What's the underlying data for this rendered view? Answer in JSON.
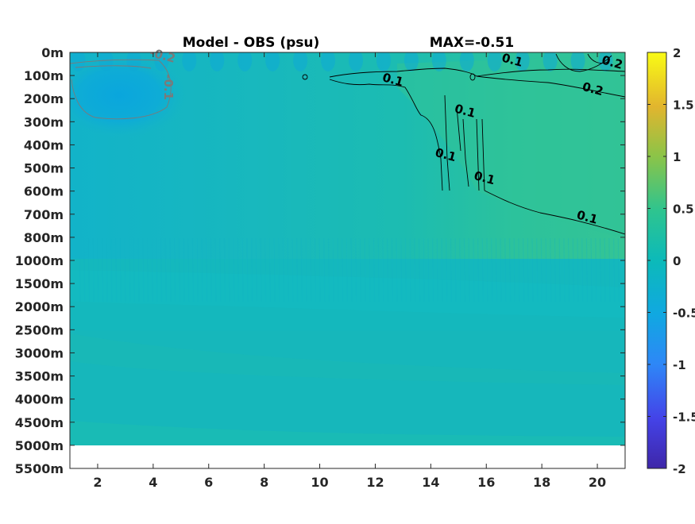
{
  "chart_data": {
    "type": "heatmap",
    "title_left": "Model - OBS (psu)",
    "title_right": "MAX=-0.51",
    "x_ticks": [
      2,
      4,
      6,
      8,
      10,
      12,
      14,
      16,
      18,
      20
    ],
    "xlim": [
      1,
      21
    ],
    "y_ticks": [
      "0m",
      "100m",
      "200m",
      "300m",
      "400m",
      "500m",
      "600m",
      "700m",
      "800m",
      "1000m",
      "1500m",
      "2000m",
      "2500m",
      "3000m",
      "3500m",
      "4000m",
      "4500m",
      "5000m",
      "5500m"
    ],
    "data_bottom_level": "5000m",
    "colorbar": {
      "ticks": [
        "2",
        "1.5",
        "1",
        "0.5",
        "0",
        "-0.5",
        "-1",
        "-1.5",
        "-2"
      ],
      "range": [
        -2,
        2
      ],
      "colormap": "parula"
    },
    "contour_labels": [
      {
        "text": "-0.2",
        "x": 4.3,
        "level": 0.3
      },
      {
        "text": "-0.1",
        "x": 4.4,
        "level": 1.5
      },
      {
        "text": "0.1",
        "x": 12.6,
        "level": 1.35
      },
      {
        "text": "0.1",
        "x": 16.9,
        "level": 0.5
      },
      {
        "text": "0.1",
        "x": 15.2,
        "level": 2.7
      },
      {
        "text": "0.1",
        "x": 14.5,
        "level": 4.6
      },
      {
        "text": "0.1",
        "x": 15.9,
        "level": 5.6
      },
      {
        "text": "0.1",
        "x": 19.6,
        "level": 7.3
      },
      {
        "text": "0.2",
        "x": 20.5,
        "level": 0.6
      },
      {
        "text": "0.2",
        "x": 19.8,
        "level": 1.75
      }
    ]
  }
}
